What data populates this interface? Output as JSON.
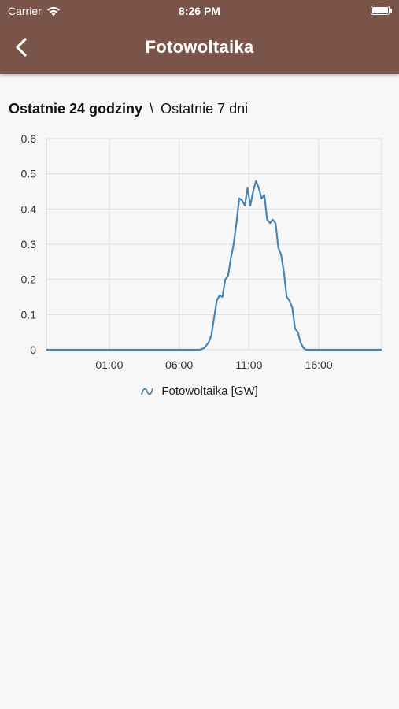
{
  "status_bar": {
    "carrier": "Carrier",
    "time": "8:26 PM"
  },
  "nav": {
    "title": "Fotowoltaika",
    "back_icon": "chevron-left-icon"
  },
  "range": {
    "active": "Ostatnie 24 godziny",
    "separator": "\\",
    "inactive": "Ostatnie 7 dni"
  },
  "colors": {
    "header": "#7a5448",
    "series": "#4a86b4",
    "grid": "#dddddd"
  },
  "chart_data": {
    "type": "line",
    "ylim": [
      0,
      0.6
    ],
    "y_ticks": [
      "0",
      "0.1",
      "0.2",
      "0.3",
      "0.4",
      "0.5",
      "0.6"
    ],
    "x_range_hours": [
      -3.5,
      20.5
    ],
    "x_ticks": [
      {
        "label": "01:00",
        "h": 1
      },
      {
        "label": "06:00",
        "h": 6
      },
      {
        "label": "11:00",
        "h": 11
      },
      {
        "label": "16:00",
        "h": 16
      }
    ],
    "grid": true,
    "legend": "bottom",
    "series": [
      {
        "name": "Fotowoltaika [GW]",
        "x": [
          -3.5,
          7.5,
          7.8,
          8.1,
          8.3,
          8.5,
          8.7,
          8.9,
          9.1,
          9.3,
          9.5,
          9.7,
          9.9,
          10.1,
          10.3,
          10.5,
          10.7,
          10.9,
          11.1,
          11.3,
          11.5,
          11.7,
          11.9,
          12.1,
          12.3,
          12.5,
          12.7,
          12.9,
          13.1,
          13.3,
          13.5,
          13.7,
          13.9,
          14.1,
          14.3,
          14.5,
          14.7,
          14.9,
          15.1,
          15.3,
          15.5,
          15.7,
          15.9,
          16.1,
          16.3,
          20.5
        ],
        "y": [
          0,
          0,
          0.005,
          0.02,
          0.04,
          0.09,
          0.14,
          0.155,
          0.15,
          0.2,
          0.21,
          0.26,
          0.3,
          0.36,
          0.43,
          0.425,
          0.41,
          0.46,
          0.41,
          0.45,
          0.48,
          0.46,
          0.43,
          0.44,
          0.37,
          0.36,
          0.37,
          0.36,
          0.29,
          0.27,
          0.22,
          0.15,
          0.14,
          0.12,
          0.06,
          0.05,
          0.02,
          0.005,
          0,
          0,
          0,
          0,
          0,
          0,
          0,
          0
        ]
      }
    ]
  }
}
